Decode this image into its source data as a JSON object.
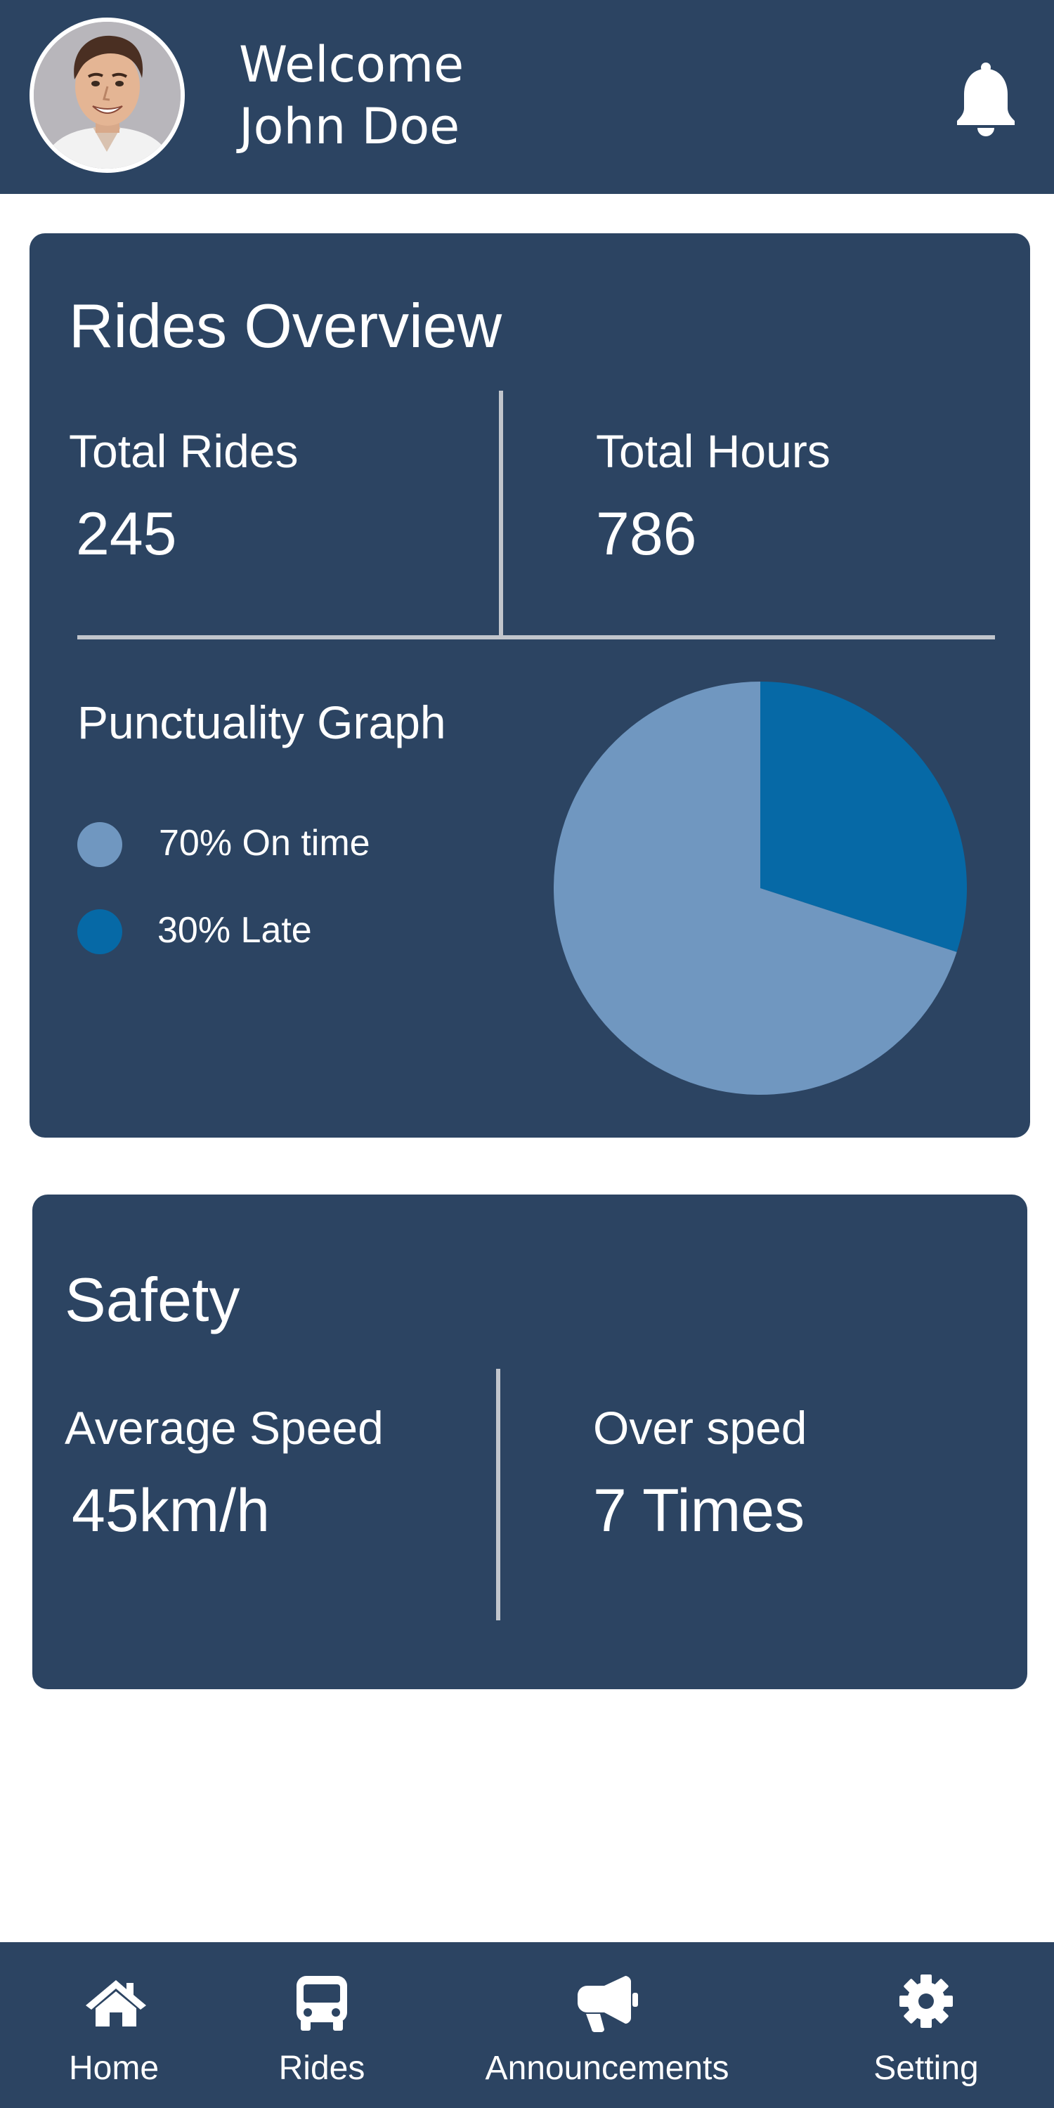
{
  "header": {
    "welcome_line1": "Welcome",
    "welcome_line2": "John Doe",
    "avatar_icon": "user-avatar",
    "notification_icon": "bell-icon"
  },
  "rides_overview": {
    "title": "Rides Overview",
    "total_rides_label": "Total Rides",
    "total_rides_value": "245",
    "total_hours_label": "Total Hours",
    "total_hours_value": "786",
    "graph_title": "Punctuality Graph",
    "legend": [
      {
        "label": "70% On time",
        "color": "#7097c0"
      },
      {
        "label": "30% Late",
        "color": "#0669a6"
      }
    ]
  },
  "chart_data": {
    "type": "pie",
    "title": "Punctuality Graph",
    "categories": [
      "On time",
      "Late"
    ],
    "values": [
      70,
      30
    ],
    "colors": [
      "#7097c0",
      "#0669a6"
    ],
    "legend_placement": "left"
  },
  "safety": {
    "title": "Safety",
    "avg_speed_label": "Average Speed",
    "avg_speed_value": "45km/h",
    "over_sped_label": "Over sped",
    "over_sped_value": "7 Times"
  },
  "nav": {
    "items": [
      {
        "label": "Home",
        "icon": "home-icon"
      },
      {
        "label": "Rides",
        "icon": "bus-icon"
      },
      {
        "label": "Announcements",
        "icon": "megaphone-icon"
      },
      {
        "label": "Setting",
        "icon": "gear-icon"
      }
    ]
  },
  "colors": {
    "primary": "#2c4462",
    "divider": "#c1c5cc",
    "on_time": "#7097c0",
    "late": "#0669a6"
  }
}
